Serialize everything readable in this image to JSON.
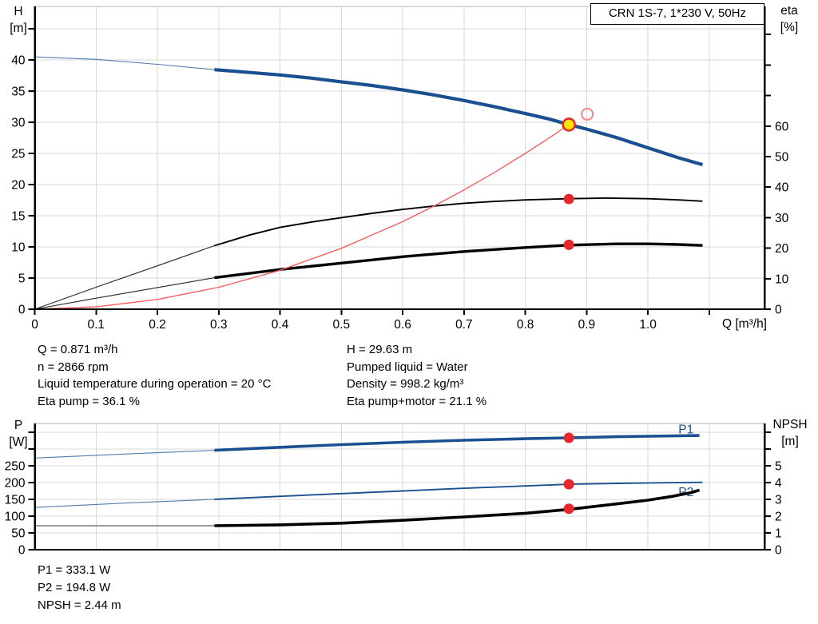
{
  "title_box": {
    "text": "CRN 1S-7, 1*230 V, 50Hz"
  },
  "annotations": {
    "mid_left": [
      "Q = 0.871 m³/h",
      "n = 2866 rpm",
      "Liquid temperature during operation = 20 °C",
      "Eta pump = 36.1 %"
    ],
    "mid_right": [
      "H = 29.63 m",
      "Pumped liquid = Water",
      "Density = 998.2 kg/m³",
      "Eta pump+motor = 21.1 %"
    ],
    "bottom": [
      "P1 = 333.1 W",
      "P2 = 194.8 W",
      "NPSH = 2.44 m"
    ]
  },
  "colors": {
    "curve_blue": "#1a5091",
    "curve_black": "#000000",
    "curve_gray": "#9c9c9c",
    "curve_red": "#f26060",
    "open_circle_red": "#f58585",
    "dot_red": "#e8262e",
    "dot_yellow": "#ffe400",
    "grid": "#d9d9d9",
    "plot_top_border": "#b4b4b4",
    "axis": "#000000",
    "text": "#000000"
  },
  "chart_data": [
    {
      "type": "line",
      "title": "CRN 1S-7, 1*230 V, 50Hz",
      "x_axis": {
        "label": "Q [m³/h]",
        "range": [
          0,
          1.19
        ],
        "ticks": [
          [
            "0",
            0
          ],
          [
            "0.1",
            0.1
          ],
          [
            "0.2",
            0.2
          ],
          [
            "0.3",
            0.3
          ],
          [
            "0.4",
            0.4
          ],
          [
            "0.5",
            0.5
          ],
          [
            "0.6",
            0.6
          ],
          [
            "0.7",
            0.7
          ],
          [
            "0.8",
            0.8
          ],
          [
            "0.9",
            0.9
          ],
          [
            "1.0",
            1.0
          ],
          [
            "",
            1.1
          ]
        ],
        "gridlines": [
          0.1,
          0.2,
          0.3,
          0.4,
          0.5,
          0.6,
          0.7,
          0.8,
          0.9,
          1.0,
          1.1
        ]
      },
      "y_left": {
        "label": "H [m]",
        "label_lines": [
          "H",
          "[m]"
        ],
        "range": [
          0,
          48.6
        ],
        "ticks": [
          [
            "0",
            0
          ],
          [
            "5",
            5
          ],
          [
            "10",
            10
          ],
          [
            "15",
            15
          ],
          [
            "20",
            20
          ],
          [
            "25",
            25
          ],
          [
            "30",
            30
          ],
          [
            "35",
            35
          ],
          [
            "40",
            40
          ],
          [
            "",
            45
          ]
        ],
        "gridlines": [
          5,
          10,
          15,
          20,
          25,
          30,
          35,
          40,
          45
        ]
      },
      "y_right": {
        "label": "eta [%]",
        "label_lines": [
          "eta",
          "[%]"
        ],
        "range": [
          0,
          99.2
        ],
        "ticks": [
          [
            "0",
            0
          ],
          [
            "10",
            10
          ],
          [
            "20",
            20
          ],
          [
            "30",
            30
          ],
          [
            "40",
            40
          ],
          [
            "50",
            50
          ],
          [
            "60",
            60
          ],
          [
            "",
            70
          ],
          [
            "",
            80
          ],
          [
            "",
            90
          ]
        ]
      },
      "series": [
        {
          "name": "Eta pump thin section",
          "axis": "right",
          "color": "#000000",
          "width": 1.1,
          "opacity": 0.85,
          "points": [
            [
              0,
              0
            ],
            [
              0.1,
              7.2
            ],
            [
              0.2,
              14.2
            ],
            [
              0.293,
              20.8
            ]
          ]
        },
        {
          "name": "Eta pump curve",
          "axis": "right",
          "color": "#000000",
          "width": 1.9,
          "points": [
            [
              0.293,
              20.8
            ],
            [
              0.35,
              24.3
            ],
            [
              0.4,
              26.8
            ],
            [
              0.45,
              28.5
            ],
            [
              0.5,
              30.0
            ],
            [
              0.55,
              31.4
            ],
            [
              0.6,
              32.7
            ],
            [
              0.65,
              33.8
            ],
            [
              0.7,
              34.7
            ],
            [
              0.75,
              35.3
            ],
            [
              0.8,
              35.8
            ],
            [
              0.871,
              36.2
            ],
            [
              0.93,
              36.4
            ],
            [
              1.0,
              36.2
            ],
            [
              1.05,
              35.8
            ],
            [
              1.089,
              35.4
            ]
          ]
        },
        {
          "name": "Eta pump+motor thin section",
          "axis": "right",
          "color": "#000000",
          "width": 1.1,
          "opacity": 0.85,
          "points": [
            [
              0,
              0
            ],
            [
              0.1,
              3.6
            ],
            [
              0.2,
              7.1
            ],
            [
              0.293,
              10.3
            ]
          ]
        },
        {
          "name": "Eta pump+motor curve",
          "axis": "right",
          "color": "#000000",
          "width": 3.4,
          "points": [
            [
              0.293,
              10.3
            ],
            [
              0.4,
              13.0
            ],
            [
              0.5,
              15.1
            ],
            [
              0.6,
              17.2
            ],
            [
              0.7,
              18.9
            ],
            [
              0.8,
              20.2
            ],
            [
              0.871,
              21.0
            ],
            [
              0.95,
              21.4
            ],
            [
              1.0,
              21.4
            ],
            [
              1.05,
              21.2
            ],
            [
              1.089,
              20.9
            ]
          ]
        },
        {
          "name": "H thin section",
          "axis": "left",
          "color": "#1a5091",
          "width": 1.1,
          "opacity": 0.75,
          "points": [
            [
              0,
              40.5
            ],
            [
              0.1,
              40.1
            ],
            [
              0.2,
              39.3
            ],
            [
              0.293,
              38.45
            ]
          ]
        },
        {
          "name": "H curve",
          "axis": "left",
          "color": "#1a5091",
          "width": 4.2,
          "points": [
            [
              0.293,
              38.45
            ],
            [
              0.35,
              38.0
            ],
            [
              0.4,
              37.6
            ],
            [
              0.45,
              37.1
            ],
            [
              0.5,
              36.5
            ],
            [
              0.55,
              35.9
            ],
            [
              0.6,
              35.2
            ],
            [
              0.65,
              34.4
            ],
            [
              0.7,
              33.5
            ],
            [
              0.75,
              32.5
            ],
            [
              0.8,
              31.4
            ],
            [
              0.84,
              30.5
            ],
            [
              0.871,
              29.63
            ],
            [
              0.9,
              28.9
            ],
            [
              0.95,
              27.5
            ],
            [
              1.0,
              25.9
            ],
            [
              1.05,
              24.3
            ],
            [
              1.089,
              23.2
            ]
          ]
        },
        {
          "name": "System curve",
          "axis": "left",
          "color": "#f26060",
          "width": 1.4,
          "points": [
            [
              0,
              0
            ],
            [
              0.1,
              0.39
            ],
            [
              0.2,
              1.56
            ],
            [
              0.3,
              3.52
            ],
            [
              0.4,
              6.25
            ],
            [
              0.5,
              9.77
            ],
            [
              0.6,
              14.06
            ],
            [
              0.65,
              16.5
            ],
            [
              0.7,
              19.14
            ],
            [
              0.75,
              21.97
            ],
            [
              0.8,
              25.0
            ],
            [
              0.84,
              27.56
            ],
            [
              0.871,
              29.63
            ]
          ]
        }
      ],
      "markers": [
        {
          "kind": "red",
          "axis": "right",
          "q": 0.871,
          "v": 36.1
        },
        {
          "kind": "red",
          "axis": "right",
          "q": 0.871,
          "v": 21.1
        },
        {
          "kind": "open",
          "axis": "left",
          "q": 0.901,
          "v": 31.3
        },
        {
          "kind": "yellow",
          "axis": "left",
          "q": 0.871,
          "v": 29.63
        }
      ],
      "labels": []
    },
    {
      "type": "line",
      "x_axis": {
        "label": "",
        "range": [
          0,
          1.19
        ],
        "ticks": [],
        "gridlines": [
          0.1,
          0.2,
          0.3,
          0.4,
          0.5,
          0.6,
          0.7,
          0.8,
          0.9,
          1.0,
          1.1
        ]
      },
      "y_left": {
        "label": "P [W]",
        "label_lines": [
          "P",
          "[W]"
        ],
        "range": [
          0,
          376
        ],
        "ticks": [
          [
            "0",
            0
          ],
          [
            "50",
            50
          ],
          [
            "100",
            100
          ],
          [
            "150",
            150
          ],
          [
            "200",
            200
          ],
          [
            "250",
            250
          ],
          [
            "",
            300
          ],
          [
            "",
            350
          ]
        ],
        "gridlines": [
          50,
          100,
          150,
          200,
          250,
          300,
          350
        ]
      },
      "y_right": {
        "label": "NPSH [m]",
        "label_lines": [
          "NPSH",
          "[m]"
        ],
        "range": [
          0,
          7.52
        ],
        "ticks": [
          [
            "0",
            0
          ],
          [
            "1",
            1
          ],
          [
            "2",
            2
          ],
          [
            "3",
            3
          ],
          [
            "4",
            4
          ],
          [
            "5",
            5
          ],
          [
            "",
            6
          ],
          [
            "",
            7
          ]
        ]
      },
      "series": [
        {
          "name": "P2 thin section",
          "axis": "left",
          "color": "#1a5091",
          "width": 1.1,
          "opacity": 0.75,
          "points": [
            [
              0,
              126
            ],
            [
              0.15,
              139
            ],
            [
              0.293,
              150
            ]
          ]
        },
        {
          "name": "P2 curve",
          "axis": "left",
          "color": "#1a5091",
          "width": 1.9,
          "points": [
            [
              0.293,
              150
            ],
            [
              0.4,
              159
            ],
            [
              0.5,
              167
            ],
            [
              0.6,
              175
            ],
            [
              0.7,
              183
            ],
            [
              0.8,
              190
            ],
            [
              0.871,
              194.8
            ],
            [
              0.95,
              197.5
            ],
            [
              1.0,
              199
            ],
            [
              1.089,
              200.5
            ]
          ]
        },
        {
          "name": "P1 thin section",
          "axis": "left",
          "color": "#1a5091",
          "width": 1.1,
          "opacity": 0.75,
          "points": [
            [
              0,
              273
            ],
            [
              0.15,
              285
            ],
            [
              0.293,
              296
            ]
          ]
        },
        {
          "name": "P1 curve",
          "axis": "left",
          "color": "#1a5091",
          "width": 3.6,
          "points": [
            [
              0.293,
              296
            ],
            [
              0.4,
              305
            ],
            [
              0.5,
              313
            ],
            [
              0.6,
              320
            ],
            [
              0.7,
              326
            ],
            [
              0.8,
              330.5
            ],
            [
              0.871,
              333.1
            ],
            [
              0.95,
              336.5
            ],
            [
              1.0,
              338
            ],
            [
              1.084,
              340
            ]
          ]
        },
        {
          "name": "NPSH thin section",
          "axis": "right",
          "color": "#9c9c9c",
          "width": 2.0,
          "points": [
            [
              0,
              1.43
            ],
            [
              0.293,
              1.43
            ]
          ]
        },
        {
          "name": "NPSH curve",
          "axis": "right",
          "color": "#000000",
          "width": 3.6,
          "points": [
            [
              0.293,
              1.43
            ],
            [
              0.4,
              1.48
            ],
            [
              0.5,
              1.58
            ],
            [
              0.6,
              1.75
            ],
            [
              0.7,
              1.95
            ],
            [
              0.8,
              2.17
            ],
            [
              0.871,
              2.4
            ],
            [
              0.95,
              2.73
            ],
            [
              1.0,
              2.95
            ],
            [
              1.04,
              3.18
            ],
            [
              1.07,
              3.4
            ],
            [
              1.084,
              3.55
            ]
          ]
        }
      ],
      "markers": [
        {
          "kind": "red",
          "axis": "left",
          "q": 0.871,
          "v": 333.1
        },
        {
          "kind": "red",
          "axis": "left",
          "q": 0.871,
          "v": 194.8
        },
        {
          "kind": "red",
          "axis": "right",
          "q": 0.871,
          "v": 2.44
        }
      ],
      "labels": [
        {
          "text": "P1",
          "axis": "left",
          "q": 1.062,
          "v": 358,
          "color": "#1a5091"
        },
        {
          "text": "P2",
          "axis": "left",
          "q": 1.062,
          "v": 171,
          "color": "#1a5091"
        }
      ]
    }
  ]
}
